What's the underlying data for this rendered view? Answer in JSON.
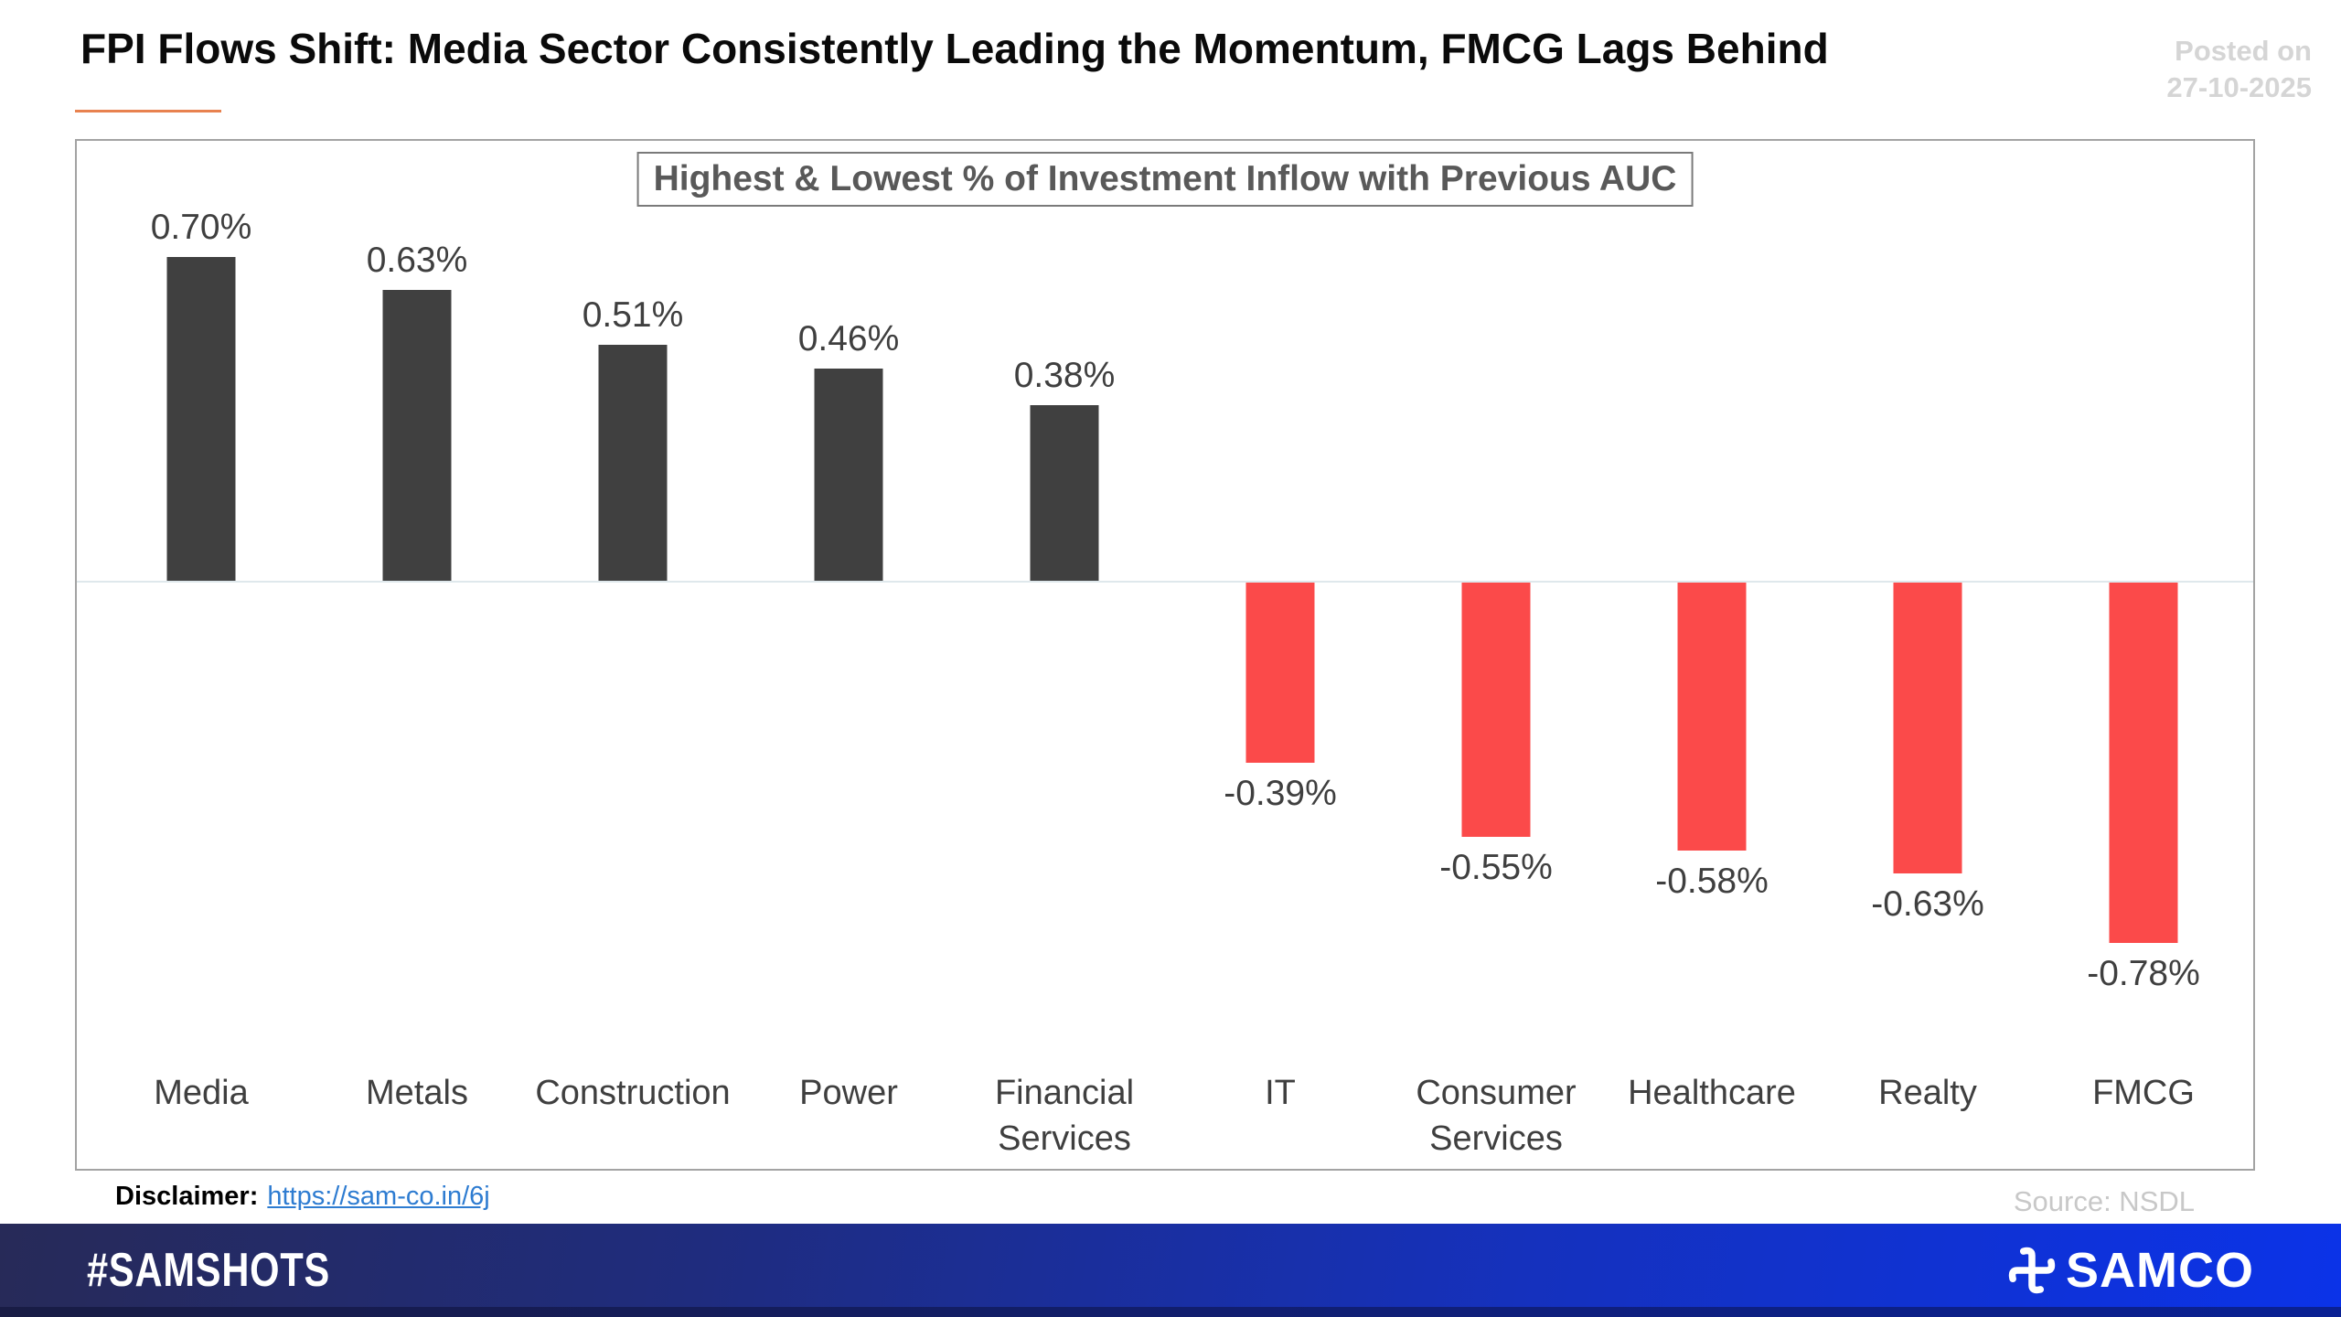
{
  "header": {
    "title": "FPI Flows Shift: Media Sector Consistently Leading the Momentum, FMCG Lags Behind",
    "posted_on_label": "Posted on",
    "posted_on_date": "27-10-2025"
  },
  "chart_data": {
    "type": "bar",
    "title": "Highest & Lowest % of Investment Inflow with Previous AUC",
    "categories": [
      "Media",
      "Metals",
      "Construction",
      "Power",
      "Financial Services",
      "IT",
      "Consumer Services",
      "Healthcare",
      "Realty",
      "FMCG"
    ],
    "values": [
      0.7,
      0.63,
      0.51,
      0.46,
      0.38,
      -0.39,
      -0.55,
      -0.58,
      -0.63,
      -0.78
    ],
    "value_labels": [
      "0.70%",
      "0.63%",
      "0.51%",
      "0.46%",
      "0.38%",
      "-0.39%",
      "-0.55%",
      "-0.58%",
      "-0.63%",
      "-0.78%"
    ],
    "xlabel": "",
    "ylabel": "",
    "ylim": [
      -0.9,
      0.8
    ],
    "grid": false,
    "legend_position": "none",
    "colors": {
      "positive_bar": "#404040",
      "negative_bar": "#fb4a4a",
      "baseline": "#dfe8ec"
    }
  },
  "footer": {
    "disclaimer_label": "Disclaimer:",
    "disclaimer_link": "https://sam-co.in/6j",
    "source": "Source: NSDL"
  },
  "branding": {
    "hashtag": "#SAMSHOTS",
    "brand": "SAMCO",
    "accent": "#ed7d31",
    "bar_gradient": [
      "#272a58",
      "#0b33e8"
    ]
  }
}
